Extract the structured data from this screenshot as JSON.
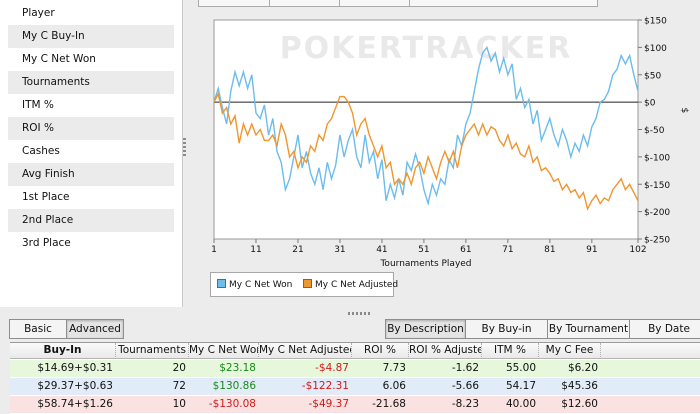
{
  "stats_panel": {
    "items": [
      "Player",
      "My C Buy-In",
      "My C Net Won",
      "Tournaments",
      "ITM %",
      "ROI %",
      "Cashes",
      "Avg Finish",
      "1st Place",
      "2nd Place",
      "3rd Place"
    ]
  },
  "chart": {
    "watermark": "POKERTRACKER",
    "right_axis_unit": "$",
    "legend": [
      "My C Net Won",
      "My C Net Adjusted"
    ]
  },
  "chart_data": {
    "type": "line",
    "xlabel": "Tournaments Played",
    "ylabel": "$",
    "xlim": [
      1,
      102
    ],
    "ylim": [
      -250,
      150
    ],
    "x_ticks": [
      1,
      11,
      21,
      31,
      41,
      51,
      61,
      71,
      81,
      91,
      102
    ],
    "y_ticks": [
      "$150",
      "$100",
      "$50",
      "$0",
      "$-50",
      "$-100",
      "$-150",
      "$-200",
      "$-250"
    ],
    "colors": {
      "My C Net Won": "#6cbcec",
      "My C Net Adjusted": "#f0962e"
    },
    "series": [
      {
        "name": "My C Net Won",
        "points": [
          [
            1,
            0
          ],
          [
            2,
            25
          ],
          [
            3,
            -10
          ],
          [
            4,
            -40
          ],
          [
            5,
            20
          ],
          [
            6,
            55
          ],
          [
            7,
            30
          ],
          [
            8,
            55
          ],
          [
            9,
            25
          ],
          [
            10,
            50
          ],
          [
            11,
            -20
          ],
          [
            12,
            -30
          ],
          [
            13,
            -5
          ],
          [
            14,
            -60
          ],
          [
            15,
            -30
          ],
          [
            16,
            -90
          ],
          [
            17,
            -110
          ],
          [
            18,
            -160
          ],
          [
            19,
            -140
          ],
          [
            20,
            -100
          ],
          [
            21,
            -60
          ],
          [
            22,
            -120
          ],
          [
            23,
            -90
          ],
          [
            24,
            -130
          ],
          [
            25,
            -150
          ],
          [
            26,
            -120
          ],
          [
            27,
            -160
          ],
          [
            28,
            -110
          ],
          [
            29,
            -140
          ],
          [
            30,
            -115
          ],
          [
            31,
            -60
          ],
          [
            32,
            -100
          ],
          [
            33,
            -70
          ],
          [
            34,
            -50
          ],
          [
            35,
            -100
          ],
          [
            36,
            -120
          ],
          [
            37,
            -60
          ],
          [
            38,
            -110
          ],
          [
            39,
            -90
          ],
          [
            40,
            -140
          ],
          [
            41,
            -105
          ],
          [
            42,
            -180
          ],
          [
            43,
            -150
          ],
          [
            44,
            -175
          ],
          [
            45,
            -140
          ],
          [
            46,
            -170
          ],
          [
            47,
            -110
          ],
          [
            48,
            -125
          ],
          [
            49,
            -95
          ],
          [
            50,
            -120
          ],
          [
            51,
            -160
          ],
          [
            52,
            -185
          ],
          [
            53,
            -150
          ],
          [
            54,
            -170
          ],
          [
            55,
            -140
          ],
          [
            56,
            -150
          ],
          [
            57,
            -105
          ],
          [
            58,
            -120
          ],
          [
            59,
            -60
          ],
          [
            60,
            -80
          ],
          [
            61,
            -40
          ],
          [
            62,
            -20
          ],
          [
            63,
            20
          ],
          [
            64,
            60
          ],
          [
            65,
            90
          ],
          [
            66,
            100
          ],
          [
            67,
            75
          ],
          [
            68,
            90
          ],
          [
            69,
            55
          ],
          [
            70,
            80
          ],
          [
            71,
            50
          ],
          [
            72,
            70
          ],
          [
            73,
            5
          ],
          [
            74,
            25
          ],
          [
            75,
            -10
          ],
          [
            76,
            5
          ],
          [
            77,
            -40
          ],
          [
            78,
            -15
          ],
          [
            79,
            -70
          ],
          [
            80,
            -50
          ],
          [
            81,
            -30
          ],
          [
            82,
            -60
          ],
          [
            83,
            -80
          ],
          [
            84,
            -50
          ],
          [
            85,
            -70
          ],
          [
            86,
            -100
          ],
          [
            87,
            -75
          ],
          [
            88,
            -90
          ],
          [
            89,
            -60
          ],
          [
            90,
            -80
          ],
          [
            91,
            -45
          ],
          [
            92,
            -30
          ],
          [
            93,
            0
          ],
          [
            94,
            5
          ],
          [
            95,
            20
          ],
          [
            96,
            50
          ],
          [
            97,
            60
          ],
          [
            98,
            85
          ],
          [
            99,
            70
          ],
          [
            100,
            85
          ],
          [
            101,
            50
          ],
          [
            102,
            20
          ]
        ]
      },
      {
        "name": "My C Net Adjusted",
        "points": [
          [
            1,
            0
          ],
          [
            2,
            15
          ],
          [
            3,
            -20
          ],
          [
            4,
            -10
          ],
          [
            5,
            -40
          ],
          [
            6,
            -25
          ],
          [
            7,
            -75
          ],
          [
            8,
            -40
          ],
          [
            9,
            -60
          ],
          [
            10,
            -40
          ],
          [
            11,
            -60
          ],
          [
            12,
            -50
          ],
          [
            13,
            -70
          ],
          [
            14,
            -70
          ],
          [
            15,
            -60
          ],
          [
            16,
            -80
          ],
          [
            17,
            -40
          ],
          [
            18,
            -60
          ],
          [
            19,
            -100
          ],
          [
            20,
            -90
          ],
          [
            21,
            -120
          ],
          [
            22,
            -100
          ],
          [
            23,
            -110
          ],
          [
            24,
            -80
          ],
          [
            25,
            -90
          ],
          [
            26,
            -60
          ],
          [
            27,
            -70
          ],
          [
            28,
            -40
          ],
          [
            29,
            -30
          ],
          [
            30,
            -10
          ],
          [
            31,
            10
          ],
          [
            32,
            10
          ],
          [
            33,
            0
          ],
          [
            34,
            -20
          ],
          [
            35,
            -60
          ],
          [
            36,
            -40
          ],
          [
            37,
            -30
          ],
          [
            38,
            -60
          ],
          [
            39,
            -80
          ],
          [
            40,
            -100
          ],
          [
            41,
            -80
          ],
          [
            42,
            -120
          ],
          [
            43,
            -110
          ],
          [
            44,
            -150
          ],
          [
            45,
            -140
          ],
          [
            46,
            -150
          ],
          [
            47,
            -130
          ],
          [
            48,
            -150
          ],
          [
            49,
            -120
          ],
          [
            50,
            -110
          ],
          [
            51,
            -130
          ],
          [
            52,
            -100
          ],
          [
            53,
            -120
          ],
          [
            54,
            -140
          ],
          [
            55,
            -110
          ],
          [
            56,
            -90
          ],
          [
            57,
            -110
          ],
          [
            58,
            -90
          ],
          [
            59,
            -120
          ],
          [
            60,
            -80
          ],
          [
            61,
            -60
          ],
          [
            62,
            -50
          ],
          [
            63,
            -40
          ],
          [
            64,
            -60
          ],
          [
            65,
            -40
          ],
          [
            66,
            -60
          ],
          [
            67,
            -45
          ],
          [
            68,
            -50
          ],
          [
            69,
            -70
          ],
          [
            70,
            -80
          ],
          [
            71,
            -60
          ],
          [
            72,
            -85
          ],
          [
            73,
            -75
          ],
          [
            74,
            -95
          ],
          [
            75,
            -100
          ],
          [
            76,
            -80
          ],
          [
            77,
            -110
          ],
          [
            78,
            -100
          ],
          [
            79,
            -125
          ],
          [
            80,
            -120
          ],
          [
            81,
            -130
          ],
          [
            82,
            -145
          ],
          [
            83,
            -140
          ],
          [
            84,
            -160
          ],
          [
            85,
            -150
          ],
          [
            86,
            -165
          ],
          [
            87,
            -160
          ],
          [
            88,
            -175
          ],
          [
            89,
            -165
          ],
          [
            90,
            -195
          ],
          [
            91,
            -180
          ],
          [
            92,
            -170
          ],
          [
            93,
            -185
          ],
          [
            94,
            -175
          ],
          [
            95,
            -180
          ],
          [
            96,
            -160
          ],
          [
            97,
            -150
          ],
          [
            98,
            -140
          ],
          [
            99,
            -160
          ],
          [
            100,
            -150
          ],
          [
            101,
            -165
          ],
          [
            102,
            -180
          ]
        ]
      }
    ]
  },
  "filter_buttons": {
    "basic": "Basic",
    "advanced": "Advanced"
  },
  "grouping_buttons": [
    "By Description",
    "By Buy-in",
    "By Tournament",
    "By Date"
  ],
  "table": {
    "columns": [
      "Buy-In",
      "Tournaments",
      "My C Net Won",
      "My C Net Adjusted",
      "ROI %",
      "ROI % Adjusted",
      "ITM %",
      "My C Fee"
    ],
    "rows": [
      [
        "$14.69+$0.31",
        "20",
        "$23.18",
        "-$4.87",
        "7.73",
        "-1.62",
        "55.00",
        "$6.20"
      ],
      [
        "$29.37+$0.63",
        "72",
        "$130.86",
        "-$122.31",
        "6.06",
        "-5.66",
        "54.17",
        "$45.36"
      ],
      [
        "$58.74+$1.26",
        "10",
        "-$130.08",
        "-$49.37",
        "-21.68",
        "-8.23",
        "40.00",
        "$12.60"
      ]
    ],
    "row_colors": [
      "#e6f7dc",
      "#e1ecf8",
      "#fbe2e2"
    ]
  }
}
